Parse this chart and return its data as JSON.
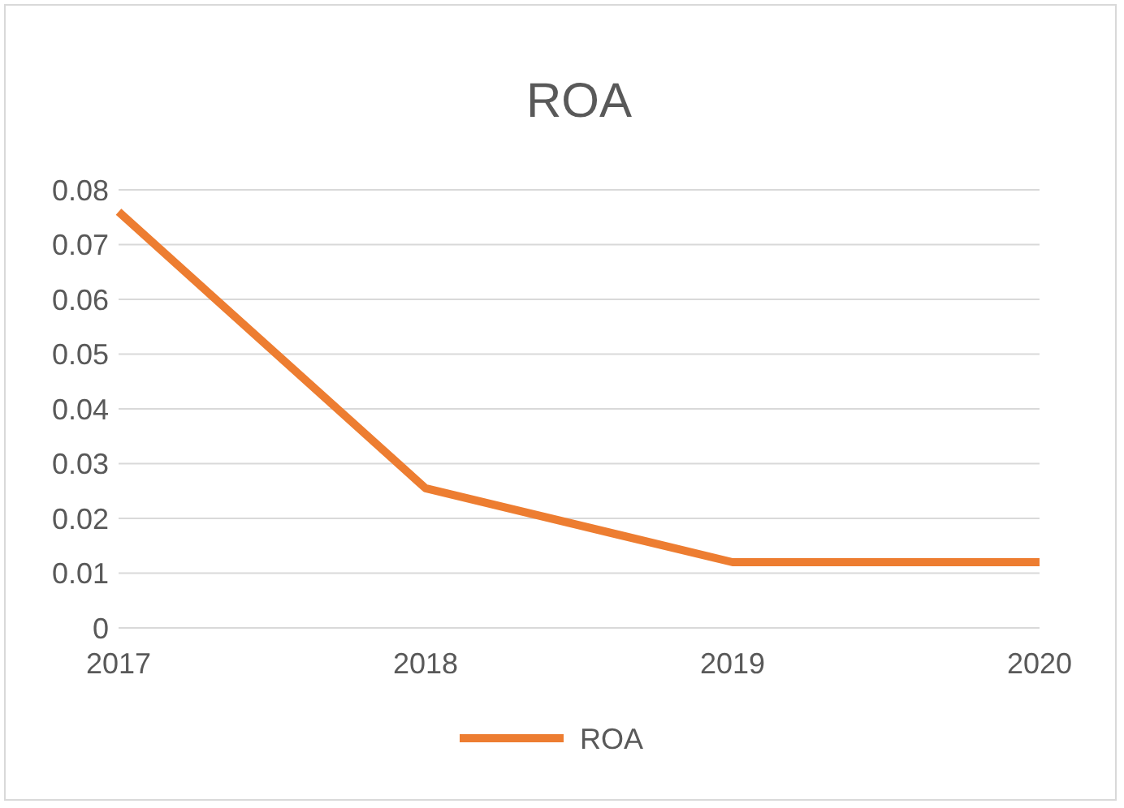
{
  "chart_data": {
    "type": "line",
    "title": "ROA",
    "x": [
      2017,
      2018,
      2019,
      2020
    ],
    "xlim": [
      2017,
      2020
    ],
    "xticks": [
      2017,
      2018,
      2019,
      2020
    ],
    "ylim": [
      0,
      0.08
    ],
    "yticks": [
      0,
      0.01,
      0.02,
      0.03,
      0.04,
      0.05,
      0.06,
      0.07,
      0.08
    ],
    "grid": "y",
    "legend": "bottom",
    "marker": "none",
    "line_style": "solid",
    "series": [
      {
        "name": "ROA",
        "color": "#ed7d31",
        "values": [
          0.076,
          0.0255,
          0.012,
          0.012
        ]
      }
    ]
  }
}
